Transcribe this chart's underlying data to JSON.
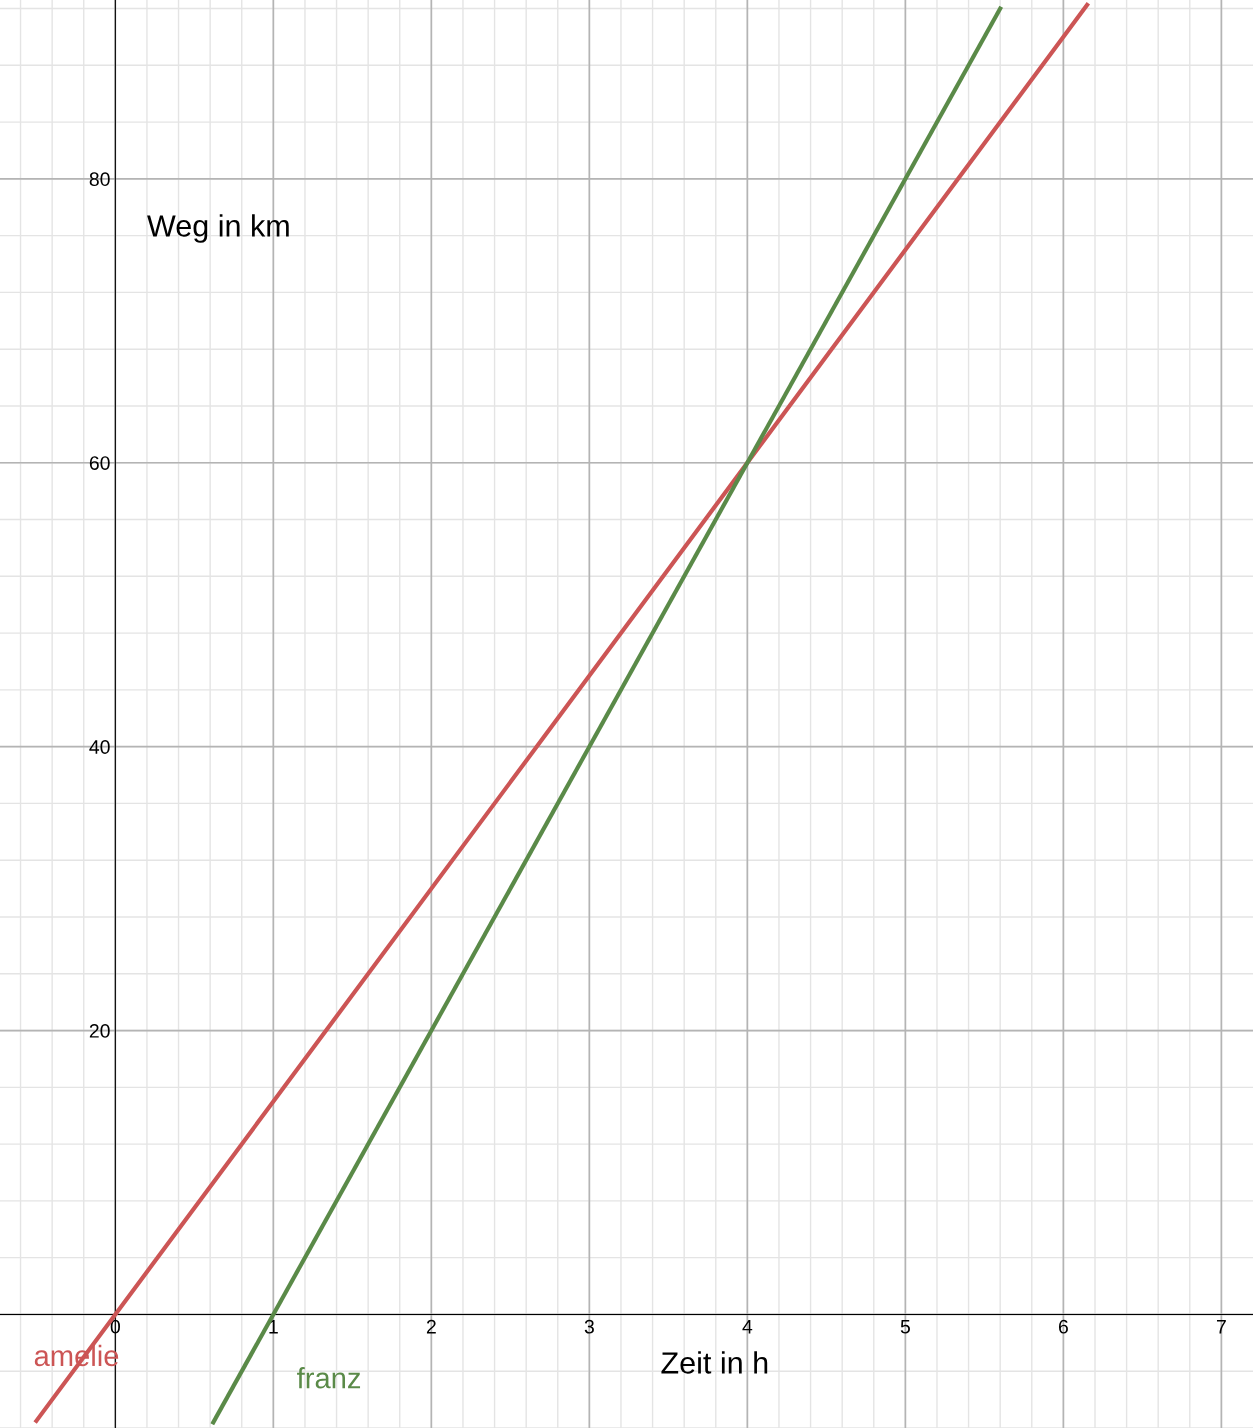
{
  "chart_data": {
    "type": "line",
    "xlabel": "Zeit in h",
    "ylabel": "Weg in km",
    "series": [
      {
        "name": "amelie",
        "color": "#cc5555",
        "x": [
          -0.5,
          6.15
        ],
        "values": [
          -7.5,
          92.25
        ]
      },
      {
        "name": "franz",
        "color": "#5a8a48",
        "x": [
          0.62,
          5.6
        ],
        "values": [
          -7.6,
          92
        ]
      }
    ],
    "xlim": [
      -0.73,
      7.2
    ],
    "ylim": [
      -8,
      92.6
    ],
    "xticks": [
      0,
      1,
      2,
      3,
      4,
      5,
      6,
      7
    ],
    "yticks": [
      {
        "value": 0,
        "label": null
      },
      20,
      40,
      60,
      80
    ],
    "grid": true,
    "line_style": "solid",
    "marker": "none",
    "legend": false
  }
}
